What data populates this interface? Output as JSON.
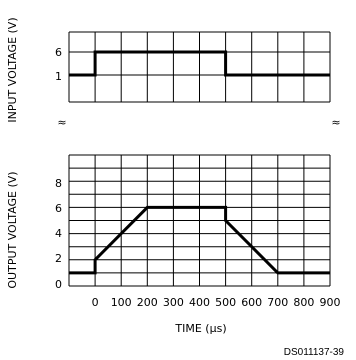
{
  "chart_data": [
    {
      "type": "line",
      "ylabel": "INPUT VOLTAGE (V)",
      "y_ticks": [
        "6",
        "1"
      ],
      "ylim": [
        0,
        8
      ],
      "series": [
        {
          "x": [
            -100,
            0,
            0,
            500,
            500,
            900
          ],
          "y": [
            1,
            1,
            6,
            6,
            1,
            1
          ]
        }
      ]
    },
    {
      "type": "line",
      "ylabel": "OUTPUT VOLTAGE (V)",
      "y_ticks": [
        "8",
        "6",
        "4",
        "2",
        "0"
      ],
      "ylim": [
        0,
        8
      ],
      "xlabel": "TIME (µs)",
      "x_ticks": [
        "0",
        "100",
        "200",
        "300",
        "400",
        "500",
        "600",
        "700",
        "800",
        "900"
      ],
      "xlim": [
        -100,
        900
      ],
      "series": [
        {
          "x": [
            -100,
            0,
            0,
            200,
            500,
            500,
            700,
            900
          ],
          "y": [
            1,
            1,
            2,
            6,
            6,
            5,
            1,
            1
          ]
        }
      ]
    }
  ],
  "break_marks": [
    "≈",
    "≈"
  ],
  "figure_id": "DS011137-39"
}
